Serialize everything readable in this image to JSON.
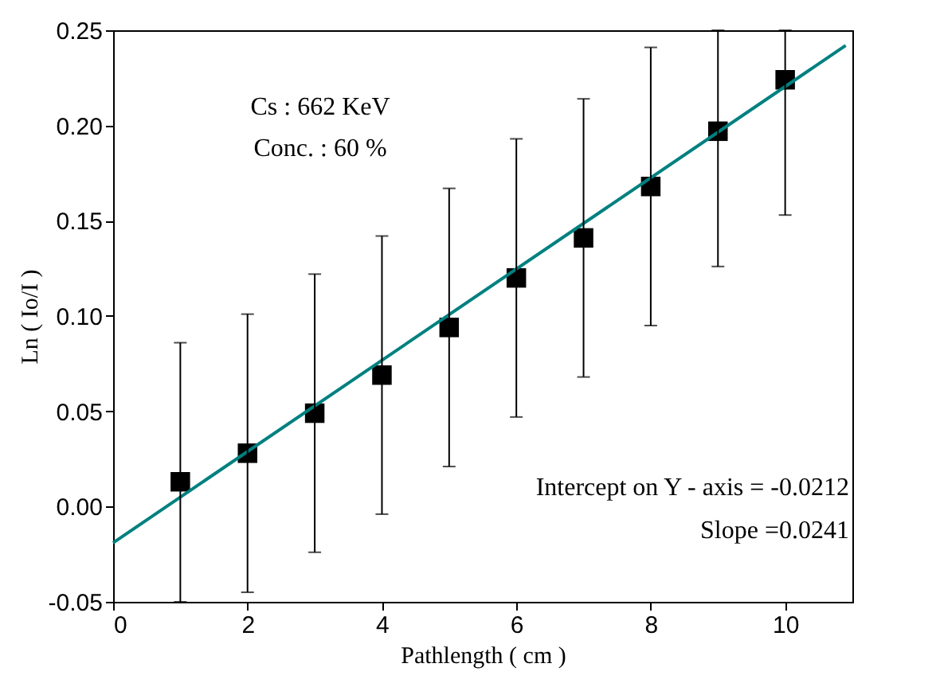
{
  "chart_data": {
    "type": "scatter",
    "xlabel": "Pathlength ( cm )",
    "ylabel": "Ln ( Io/I )",
    "x": [
      1,
      2,
      3,
      4,
      5,
      6,
      7,
      8,
      9,
      10
    ],
    "series": [
      {
        "color": "#000000",
        "marker": "square",
        "values": [
          0.013,
          0.028,
          0.049,
          0.069,
          0.094,
          0.12,
          0.141,
          0.168,
          0.197,
          0.224
        ],
        "errors": [
          [
            -0.05,
            0.086
          ],
          0.073,
          0.073,
          0.073,
          0.073,
          0.073,
          0.073,
          0.073,
          [
            0.126,
            0.25
          ],
          [
            0.153,
            0.25
          ]
        ]
      },
      {
        "type": "line",
        "color": "#008080",
        "x": [
          0,
          10.9
        ],
        "values": [
          -0.019,
          0.242
        ]
      }
    ],
    "xlim": [
      0,
      11
    ],
    "xticks": [
      0,
      2,
      4,
      6,
      8,
      10
    ],
    "ylim": [
      -0.05,
      0.25
    ],
    "yticks": [
      {
        "value": -0.05,
        "label": "-0.05"
      },
      {
        "value": 0,
        "label": "0.00"
      },
      {
        "value": 0.05,
        "label": "0.05"
      },
      {
        "value": 0.1,
        "label": "0.10"
      },
      {
        "value": 0.15,
        "label": "0.15"
      },
      {
        "value": 0.2,
        "label": "0.20"
      },
      {
        "value": 0.25,
        "label": "0.25"
      }
    ],
    "grid": false,
    "annotations": [
      "Cs : 662 KeV",
      "Conc. : 60 %",
      "Intercept on Y - axis =  -0.0212",
      "Slope =0.0241"
    ]
  }
}
